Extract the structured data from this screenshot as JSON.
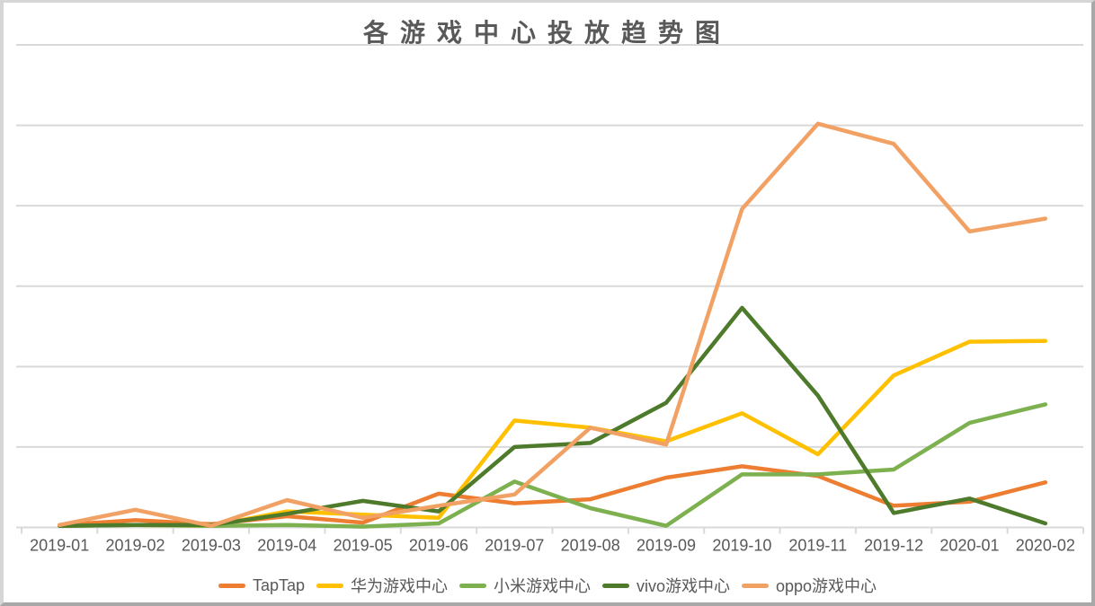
{
  "window": {
    "background": "#ffffff",
    "frame_border_light": "#d6d6d6",
    "frame_border_dark": "#a8a8a8"
  },
  "styles": {
    "title_color": "#595959",
    "axis_label_color": "#595959",
    "gridline_color": "#d9d9d9",
    "axis_line_color": "#d9d9d9"
  },
  "chart_data": {
    "type": "line",
    "title": "各游戏中心投放趋势图",
    "xlabel": "",
    "ylabel": "",
    "y_axis_labels_visible": false,
    "ylim": [
      0,
      600
    ],
    "y_gridline_step": 100,
    "grid": "horizontal",
    "legend_position": "bottom",
    "categories": [
      "2019-01",
      "2019-02",
      "2019-03",
      "2019-04",
      "2019-05",
      "2019-06",
      "2019-07",
      "2019-08",
      "2019-09",
      "2019-10",
      "2019-11",
      "2019-12",
      "2020-01",
      "2020-02"
    ],
    "series": [
      {
        "name": "TapTap",
        "color": "#ED7D31",
        "values": [
          3,
          9,
          4,
          14,
          6,
          42,
          30,
          35,
          62,
          76,
          64,
          27,
          32,
          56
        ]
      },
      {
        "name": "华为游戏中心",
        "color": "#FFC000",
        "values": [
          2,
          3,
          2,
          20,
          16,
          12,
          133,
          124,
          107,
          142,
          91,
          189,
          231,
          232
        ]
      },
      {
        "name": "小米游戏中心",
        "color": "#7DB04F",
        "values": [
          2,
          3,
          2,
          3,
          1,
          5,
          57,
          24,
          2,
          66,
          66,
          72,
          130,
          153
        ]
      },
      {
        "name": "vivo游戏中心",
        "color": "#4E7A2B",
        "values": [
          2,
          3,
          3,
          17,
          33,
          20,
          100,
          105,
          155,
          273,
          164,
          18,
          36,
          5
        ]
      },
      {
        "name": "oppo游戏中心",
        "color": "#F2A164",
        "values": [
          3,
          22,
          2,
          34,
          12,
          27,
          41,
          124,
          103,
          396,
          502,
          477,
          368,
          384
        ]
      }
    ]
  }
}
